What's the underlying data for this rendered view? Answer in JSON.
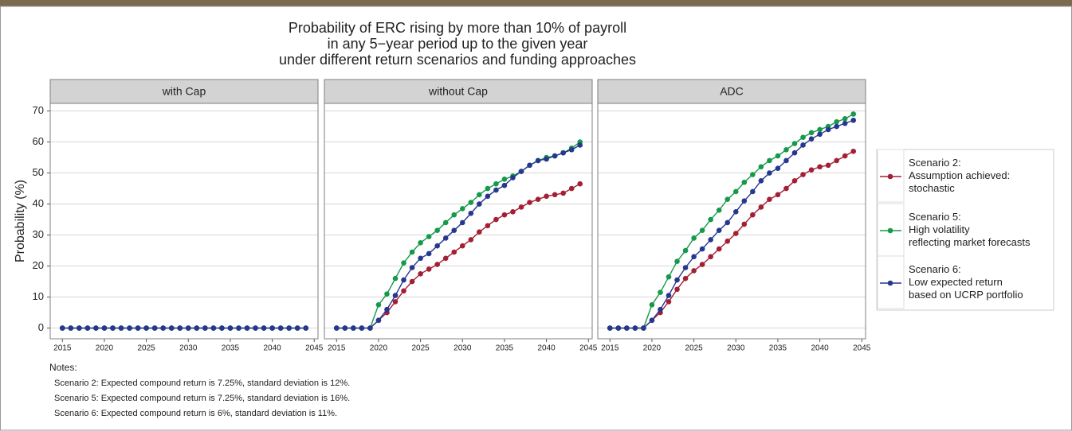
{
  "chart_data": [
    {
      "type": "line",
      "title": "Probability of ERC rising by more than 10% of payroll\nin any 5−year period up to the given year\nunder different return scenarios and funding approaches",
      "y_label": "Probability (%)",
      "panel": "with Cap",
      "x": [
        2015,
        2016,
        2017,
        2018,
        2019,
        2020,
        2021,
        2022,
        2023,
        2024,
        2025,
        2026,
        2027,
        2028,
        2029,
        2030,
        2031,
        2032,
        2033,
        2034,
        2035,
        2036,
        2037,
        2038,
        2039,
        2040,
        2041,
        2042,
        2043,
        2044
      ],
      "series": [
        {
          "name": "Scenario 2:\nAssumption achieved:\nstochastic",
          "color": "#a31f34",
          "values": [
            0,
            0,
            0,
            0,
            0,
            0,
            0,
            0,
            0,
            0,
            0,
            0,
            0,
            0,
            0,
            0,
            0,
            0,
            0,
            0,
            0,
            0,
            0,
            0,
            0,
            0,
            0,
            0,
            0,
            0
          ]
        },
        {
          "name": "Scenario 5:\nHigh volatility\nreflecting market forecasts",
          "color": "#15994a",
          "values": [
            0,
            0,
            0,
            0,
            0,
            0,
            0,
            0,
            0,
            0,
            0,
            0,
            0,
            0,
            0,
            0,
            0,
            0,
            0,
            0,
            0,
            0,
            0,
            0,
            0,
            0,
            0,
            0,
            0,
            0
          ]
        },
        {
          "name": "Scenario 6:\nLow expected return\nbased on UCRP portfolio",
          "color": "#26378f",
          "values": [
            0,
            0,
            0,
            0,
            0,
            0,
            0,
            0,
            0,
            0,
            0,
            0,
            0,
            0,
            0,
            0,
            0,
            0,
            0,
            0,
            0,
            0,
            0,
            0,
            0,
            0,
            0,
            0,
            0,
            0
          ]
        }
      ],
      "xlim": [
        2013.55,
        2045.45
      ],
      "xticks": [
        2015,
        2020,
        2025,
        2030,
        2035,
        2040,
        2045
      ],
      "ylim": [
        -3.45,
        72.45
      ],
      "yticks": [
        0,
        10,
        20,
        30,
        40,
        50,
        60,
        70
      ],
      "grid": true
    },
    {
      "type": "line",
      "panel": "without Cap",
      "x": [
        2015,
        2016,
        2017,
        2018,
        2019,
        2020,
        2021,
        2022,
        2023,
        2024,
        2025,
        2026,
        2027,
        2028,
        2029,
        2030,
        2031,
        2032,
        2033,
        2034,
        2035,
        2036,
        2037,
        2038,
        2039,
        2040,
        2041,
        2042,
        2043,
        2044
      ],
      "series": [
        {
          "name": "Scenario 2:\nAssumption achieved:\nstochastic",
          "color": "#a31f34",
          "values": [
            0,
            0,
            0,
            0,
            0,
            2.5,
            5,
            8.5,
            12,
            15,
            17.5,
            19,
            20.5,
            22.5,
            24.5,
            26.5,
            28.5,
            31,
            33,
            35,
            36.5,
            37.5,
            39,
            40.5,
            41.5,
            42.5,
            43,
            43.5,
            45,
            46.5
          ]
        },
        {
          "name": "Scenario 5:\nHigh volatility\nreflecting market forecasts",
          "color": "#15994a",
          "values": [
            0,
            0,
            0,
            0,
            0,
            7.5,
            11,
            16,
            21,
            24.5,
            27.5,
            29.5,
            31.5,
            34,
            36.5,
            38.5,
            40.5,
            43,
            45,
            46.5,
            48,
            49,
            50.5,
            52.5,
            54,
            55,
            55.5,
            56.5,
            58,
            60
          ]
        },
        {
          "name": "Scenario 6:\nLow expected return\nbased on UCRP portfolio",
          "color": "#26378f",
          "values": [
            0,
            0,
            0,
            0,
            0,
            2.5,
            6,
            10.5,
            15.5,
            19.5,
            22.5,
            24,
            26.5,
            29,
            31.5,
            34,
            37,
            40,
            42.5,
            44.5,
            46,
            48.5,
            50.5,
            52.5,
            54,
            54.5,
            55.5,
            56.5,
            57.5,
            59
          ]
        }
      ],
      "xlim": [
        2013.55,
        2045.45
      ],
      "xticks": [
        2015,
        2020,
        2025,
        2030,
        2035,
        2040,
        2045
      ],
      "ylim": [
        -3.45,
        72.45
      ],
      "yticks": [
        0,
        10,
        20,
        30,
        40,
        50,
        60,
        70
      ],
      "grid": true
    },
    {
      "type": "line",
      "panel": "ADC",
      "x": [
        2015,
        2016,
        2017,
        2018,
        2019,
        2020,
        2021,
        2022,
        2023,
        2024,
        2025,
        2026,
        2027,
        2028,
        2029,
        2030,
        2031,
        2032,
        2033,
        2034,
        2035,
        2036,
        2037,
        2038,
        2039,
        2040,
        2041,
        2042,
        2043,
        2044
      ],
      "series": [
        {
          "name": "Scenario 2:\nAssumption achieved:\nstochastic",
          "color": "#a31f34",
          "values": [
            0,
            0,
            0,
            0,
            0,
            2.5,
            5,
            8.5,
            12.5,
            16,
            18.5,
            20.5,
            23,
            25.5,
            28,
            30.5,
            33.5,
            36.5,
            39,
            41.5,
            43,
            45,
            47.5,
            49.5,
            51,
            52,
            52.5,
            54,
            55.5,
            57
          ]
        },
        {
          "name": "Scenario 5:\nHigh volatility\nreflecting market forecasts",
          "color": "#15994a",
          "values": [
            0,
            0,
            0,
            0,
            0,
            7.5,
            11.5,
            16.5,
            21.5,
            25,
            29,
            31.5,
            35,
            38,
            41.5,
            44,
            47,
            49.5,
            52,
            54,
            55.5,
            57.5,
            59.5,
            61.5,
            63,
            64,
            65,
            66.5,
            67.5,
            69
          ]
        },
        {
          "name": "Scenario 6:\nLow expected return\nbased on UCRP portfolio",
          "color": "#26378f",
          "values": [
            0,
            0,
            0,
            0,
            0,
            2.5,
            6,
            10.5,
            15.5,
            19.5,
            23,
            25.5,
            28.5,
            31.5,
            34,
            37.5,
            41,
            44,
            47.5,
            50,
            51.5,
            54,
            56.5,
            59,
            61,
            62.5,
            64,
            65,
            66,
            67
          ]
        }
      ],
      "xlim": [
        2013.55,
        2045.45
      ],
      "xticks": [
        2015,
        2020,
        2025,
        2030,
        2035,
        2040,
        2045
      ],
      "ylim": [
        -3.45,
        72.45
      ],
      "yticks": [
        0,
        10,
        20,
        30,
        40,
        50,
        60,
        70
      ],
      "grid": true
    }
  ],
  "notes": {
    "heading": "Notes:",
    "lines": [
      "Scenario 2: Expected compound return is 7.25%, standard deviation is 12%.",
      "Scenario 5: Expected compound return is 7.25%, standard deviation is 16%.",
      "Scenario 6: Expected compound return is 6%, standard deviation is 11%."
    ]
  }
}
